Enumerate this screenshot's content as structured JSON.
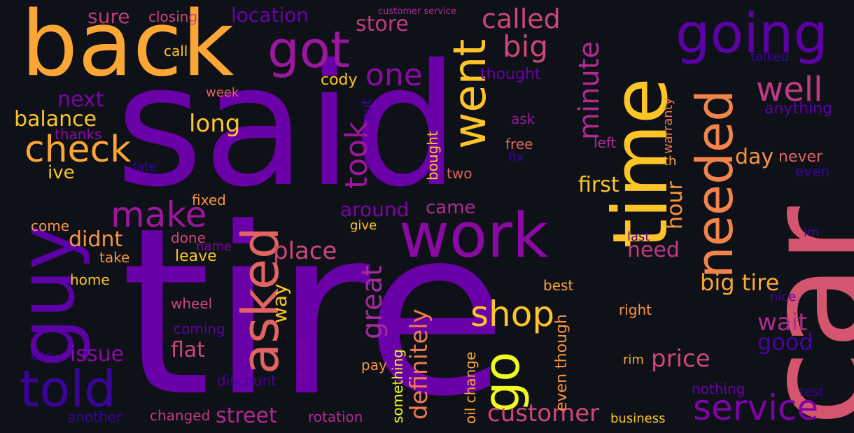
{
  "words": [
    {
      "text": "tire",
      "color": "#6a00a8"
    },
    {
      "text": "said",
      "color": "#6a00a8"
    },
    {
      "text": "car",
      "color": "#d5546e"
    },
    {
      "text": "back",
      "color": "#fca636"
    },
    {
      "text": "time",
      "color": "#fdc527"
    },
    {
      "text": "work",
      "color": "#8b0aa5"
    },
    {
      "text": "going",
      "color": "#5c01a6"
    },
    {
      "text": "got",
      "color": "#9c179e"
    },
    {
      "text": "guy",
      "color": "#5c01a6"
    },
    {
      "text": "told",
      "color": "#3a049a"
    },
    {
      "text": "go",
      "color": "#f0f921"
    },
    {
      "text": "asked",
      "color": "#e16462"
    },
    {
      "text": "needed",
      "color": "#f2844b"
    },
    {
      "text": "went",
      "color": "#fdc527"
    },
    {
      "text": "service",
      "color": "#7e03a8"
    },
    {
      "text": "check",
      "color": "#fca636"
    },
    {
      "text": "make",
      "color": "#9c179e"
    },
    {
      "text": "shop",
      "color": "#fdc527"
    },
    {
      "text": "well",
      "color": "#c03a83"
    },
    {
      "text": "big tire",
      "color": "#fca636"
    },
    {
      "text": "took",
      "color": "#9c179e"
    },
    {
      "text": "one",
      "color": "#8b0aa5"
    },
    {
      "text": "big",
      "color": "#cc4778"
    },
    {
      "text": "minute",
      "color": "#b12a90"
    },
    {
      "text": "called",
      "color": "#cc4778"
    },
    {
      "text": "great",
      "color": "#a22b9a"
    },
    {
      "text": "definitely",
      "color": "#ed7953"
    },
    {
      "text": "customer",
      "color": "#cc4778"
    },
    {
      "text": "price",
      "color": "#cc4778"
    },
    {
      "text": "wait",
      "color": "#b12a90"
    },
    {
      "text": "good",
      "color": "#4c02a1"
    },
    {
      "text": "street",
      "color": "#b12a90"
    },
    {
      "text": "place",
      "color": "#cc4778"
    },
    {
      "text": "long",
      "color": "#fdc527"
    },
    {
      "text": "location",
      "color": "#6a00a8"
    },
    {
      "text": "store",
      "color": "#c03a83"
    },
    {
      "text": "balance",
      "color": "#fdc527"
    },
    {
      "text": "next",
      "color": "#7e03a8"
    },
    {
      "text": "didnt",
      "color": "#f89540"
    },
    {
      "text": "issue",
      "color": "#8b0aa5"
    },
    {
      "text": "flat",
      "color": "#cc4778"
    },
    {
      "text": "first",
      "color": "#fdc527"
    },
    {
      "text": "need",
      "color": "#c03a83"
    },
    {
      "text": "hour",
      "color": "#f89540"
    },
    {
      "text": "day",
      "color": "#f89540"
    },
    {
      "text": "around",
      "color": "#7e03a8"
    },
    {
      "text": "came",
      "color": "#b12a90"
    },
    {
      "text": "way",
      "color": "#fdc527"
    },
    {
      "text": "sure",
      "color": "#c03a83"
    },
    {
      "text": "ive",
      "color": "#fdc527"
    },
    {
      "text": "anything",
      "color": "#5c01a6"
    },
    {
      "text": "never",
      "color": "#e16462"
    },
    {
      "text": "even",
      "color": "#3a049a"
    },
    {
      "text": "even though",
      "color": "#f89540"
    },
    {
      "text": "oil change",
      "color": "#fca636"
    },
    {
      "text": "something",
      "color": "#f0f921"
    },
    {
      "text": "closing",
      "color": "#cc4778"
    },
    {
      "text": "customer service",
      "color": "#b12a90"
    },
    {
      "text": "call",
      "color": "#fdc527"
    },
    {
      "text": "cody",
      "color": "#fdc527"
    },
    {
      "text": "thought",
      "color": "#6a00a8"
    },
    {
      "text": "week",
      "color": "#e16462"
    },
    {
      "text": "thanks",
      "color": "#8b0aa5"
    },
    {
      "text": "late",
      "color": "#3a049a"
    },
    {
      "text": "put",
      "color": "#4c02a1"
    },
    {
      "text": "bought",
      "color": "#fdc527"
    },
    {
      "text": "ask",
      "color": "#9c179e"
    },
    {
      "text": "free",
      "color": "#e16462"
    },
    {
      "text": "fix",
      "color": "#3a049a"
    },
    {
      "text": "left",
      "color": "#b12a90"
    },
    {
      "text": "warranty",
      "color": "#ed7953"
    },
    {
      "text": "th",
      "color": "#fca636"
    },
    {
      "text": "two",
      "color": "#e16462"
    },
    {
      "text": "fixed",
      "color": "#f89540"
    },
    {
      "text": "come",
      "color": "#f89540"
    },
    {
      "text": "done",
      "color": "#cc4778"
    },
    {
      "text": "name",
      "color": "#7e03a8"
    },
    {
      "text": "give",
      "color": "#fdc527"
    },
    {
      "text": "take",
      "color": "#f89540"
    },
    {
      "text": "leave",
      "color": "#fdc527"
    },
    {
      "text": "home",
      "color": "#fdc527"
    },
    {
      "text": "wheel",
      "color": "#cc4778"
    },
    {
      "text": "coming",
      "color": "#5c01a6"
    },
    {
      "text": "use",
      "color": "#4c02a1"
    },
    {
      "text": "another",
      "color": "#3a049a"
    },
    {
      "text": "changed",
      "color": "#c03a83"
    },
    {
      "text": "rotation",
      "color": "#b12a90"
    },
    {
      "text": "discount",
      "color": "#4c02a1"
    },
    {
      "text": "charge",
      "color": "#7e03a8"
    },
    {
      "text": "pay",
      "color": "#f89540"
    },
    {
      "text": "best",
      "color": "#fca636"
    },
    {
      "text": "right",
      "color": "#f89540"
    },
    {
      "text": "rim",
      "color": "#fca636"
    },
    {
      "text": "last",
      "color": "#4c02a1"
    },
    {
      "text": "nice",
      "color": "#4c02a1"
    },
    {
      "text": "im",
      "color": "#4c02a1"
    },
    {
      "text": "nothing",
      "color": "#6a00a8"
    },
    {
      "text": "test",
      "color": "#3a049a"
    },
    {
      "text": "business",
      "color": "#fdc527"
    },
    {
      "text": "talked",
      "color": "#3a049a"
    }
  ]
}
